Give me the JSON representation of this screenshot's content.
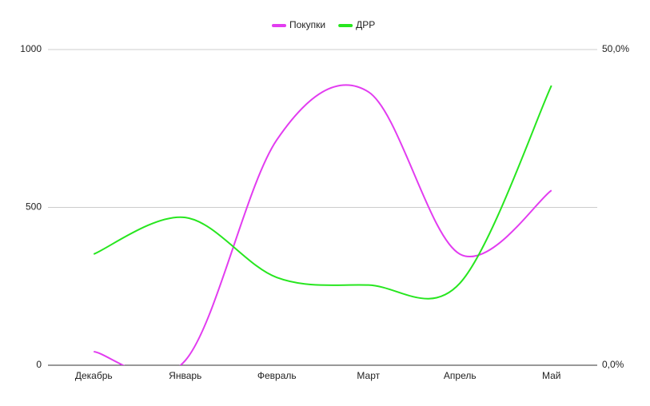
{
  "chart_data": {
    "type": "line",
    "categories": [
      "Декабрь",
      "Январь",
      "Февраль",
      "Март",
      "Апрель",
      "Май"
    ],
    "series": [
      {
        "name": "Покупки",
        "color": "#e23cf0",
        "values": [
          43,
          15,
          714,
          866,
          352,
          554
        ]
      },
      {
        "name": "ДРР",
        "color": "#27e61f",
        "axis": "y2",
        "values": [
          17.6,
          23.4,
          13.9,
          12.7,
          13.0,
          44.3
        ]
      }
    ],
    "ylim": [
      0,
      1000
    ],
    "yticks": [
      0,
      500,
      1000
    ],
    "y2lim": [
      0,
      50
    ],
    "y2ticks": [
      {
        "value": 0,
        "label": "0,0%"
      },
      {
        "value": 50,
        "label": "50,0%"
      }
    ],
    "grid": true,
    "smooth": true,
    "legend": "top"
  }
}
